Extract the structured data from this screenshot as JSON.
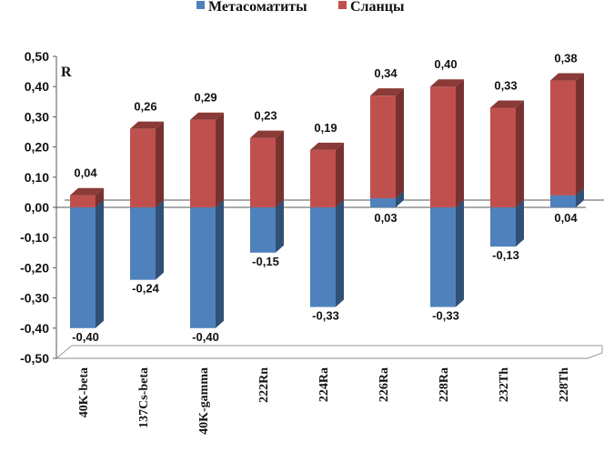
{
  "chart_data": {
    "type": "bar",
    "subtype": "3d-stacked-column",
    "ylabel": "R",
    "ylim": [
      -0.5,
      0.5
    ],
    "ytick_step": 0.1,
    "ytick_labels": [
      "-0,50",
      "-0,40",
      "-0,30",
      "-0,20",
      "-0,10",
      "0,00",
      "0,10",
      "0,20",
      "0,30",
      "0,40",
      "0,50"
    ],
    "legend_position": "top",
    "categories": [
      "40K-beta",
      "137Cs-beta",
      "40K-gamma",
      "222Rn",
      "224Ra",
      "226Ra",
      "228Ra",
      "232Th",
      "228Th"
    ],
    "series": [
      {
        "name": "Метасоматиты",
        "color": "#4F81BD",
        "values": [
          -0.4,
          -0.24,
          -0.4,
          -0.15,
          -0.33,
          0.03,
          -0.33,
          -0.13,
          0.04
        ],
        "labels": [
          "-0,40",
          "-0,24",
          "-0,40",
          "-0,15",
          "-0,33",
          "0,03",
          "-0,33",
          "-0,13",
          "0,04"
        ]
      },
      {
        "name": "Сланцы",
        "color": "#C0504D",
        "values": [
          0.04,
          0.26,
          0.29,
          0.23,
          0.19,
          0.34,
          0.4,
          0.33,
          0.38
        ],
        "labels": [
          "0,04",
          "0,26",
          "0,29",
          "0,23",
          "0,19",
          "0,34",
          "0,40",
          "0,33",
          "0,38"
        ]
      }
    ]
  }
}
